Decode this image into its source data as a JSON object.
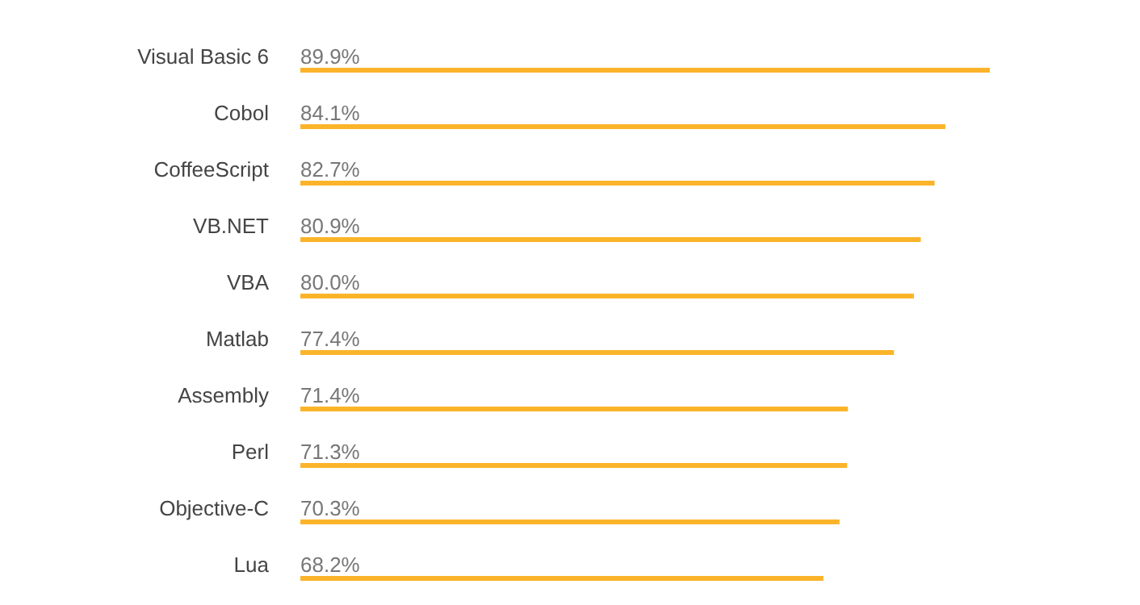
{
  "chart_data": {
    "type": "bar",
    "orientation": "horizontal",
    "categories": [
      "Visual Basic 6",
      "Cobol",
      "CoffeeScript",
      "VB.NET",
      "VBA",
      "Matlab",
      "Assembly",
      "Perl",
      "Objective-C",
      "Lua"
    ],
    "values": [
      89.9,
      84.1,
      82.7,
      80.9,
      80.0,
      77.4,
      71.4,
      71.3,
      70.3,
      68.2
    ],
    "value_labels": [
      "89.9%",
      "84.1%",
      "82.7%",
      "80.9%",
      "80.0%",
      "77.4%",
      "71.4%",
      "71.3%",
      "70.3%",
      "68.2%"
    ],
    "color": "#fbb42a"
  }
}
